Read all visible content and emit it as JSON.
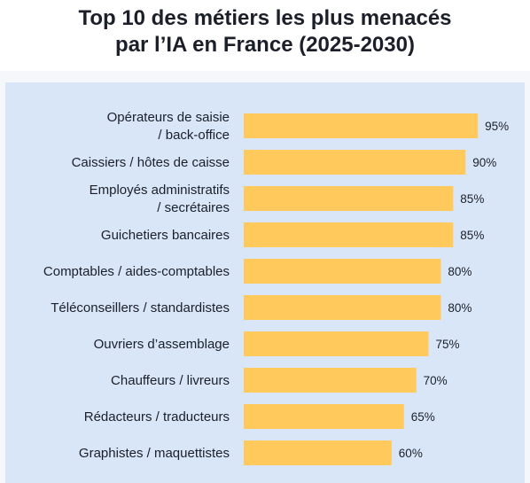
{
  "chart_data": {
    "type": "bar",
    "orientation": "horizontal",
    "title": "Top 10 des métiers les plus menacés par l’IA en France (2025-2030)",
    "title_lines": [
      "Top 10 des métiers les plus menacés",
      "par l’IA en France (2025-2030)"
    ],
    "categories": [
      "Opérateurs de saisie / back-office",
      "Caissiers / hôtes de caisse",
      "Employés administratifs / secrétaires",
      "Guichetiers bancaires",
      "Comptables / aides-comptables",
      "Téléconseillers / standardistes",
      "Ouvriers d’assemblage",
      "Chauffeurs / livreurs",
      "Rédacteurs / traducteurs",
      "Graphistes / maquettistes"
    ],
    "category_lines": [
      [
        "Opérateurs de saisie",
        "/ back-office"
      ],
      [
        "Caissiers / hôtes de caisse"
      ],
      [
        "Employés administratifs",
        "/ secrétaires"
      ],
      [
        "Guichetiers bancaires"
      ],
      [
        "Comptables / aides-comptables"
      ],
      [
        "Téléconseillers / standardistes"
      ],
      [
        "Ouvriers d’assemblage"
      ],
      [
        "Chauffeurs / livreurs"
      ],
      [
        "Rédacteurs / traducteurs"
      ],
      [
        "Graphistes / maquettistes"
      ]
    ],
    "values": [
      95,
      90,
      85,
      85,
      80,
      80,
      75,
      70,
      65,
      60
    ],
    "value_labels": [
      "95%",
      "90%",
      "85%",
      "85%",
      "80%",
      "80%",
      "75%",
      "70%",
      "65%",
      "60%"
    ],
    "unit": "%",
    "xlim": [
      0,
      100
    ],
    "grid": false,
    "legend": "none"
  },
  "colors": {
    "bar": "#ffc95c",
    "panel": "#d8e6f7",
    "background": "#f5f7fb",
    "text": "#1b1f2a"
  }
}
